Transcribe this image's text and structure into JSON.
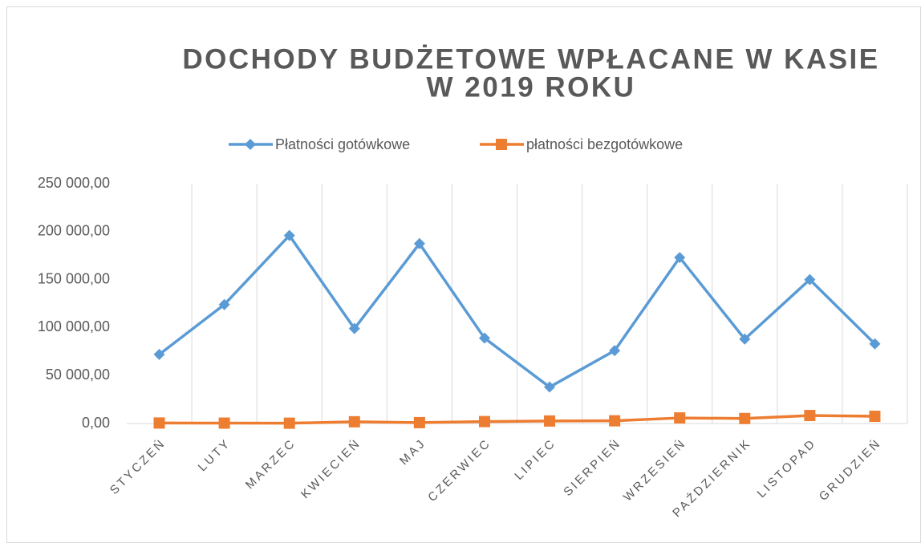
{
  "chart_data": {
    "type": "line",
    "title": [
      "DOCHODY BUDŻETOWE WPŁACANE W KASIE",
      "W 2019 ROKU"
    ],
    "categories": [
      "STYCZEŃ",
      "LUTY",
      "MARZEC",
      "KWIECIEŃ",
      "MAJ",
      "CZERWIEC",
      "LIPIEC",
      "SIERPIEŃ",
      "WRZESIEŃ",
      "PAŹDZIERNIK",
      "LISTOPAD",
      "GRUDZIEŃ"
    ],
    "series": [
      {
        "name": "Płatności gotówkowe",
        "color": "#5b9bd5",
        "marker": "diamond",
        "values": [
          72000,
          124000,
          196000,
          99000,
          187500,
          89000,
          38000,
          76000,
          173000,
          88000,
          150000,
          83000
        ]
      },
      {
        "name": "płatności bezgotówkowe",
        "color": "#ed7d31",
        "marker": "square",
        "values": [
          500,
          400,
          300,
          1800,
          900,
          2000,
          2600,
          2800,
          5800,
          5200,
          8300,
          7500
        ]
      }
    ],
    "ylim": [
      0,
      250000
    ],
    "yticks": [
      {
        "value": 0,
        "label": "0,00"
      },
      {
        "value": 50000,
        "label": "50 000,00"
      },
      {
        "value": 100000,
        "label": "100 000,00"
      },
      {
        "value": 150000,
        "label": "150 000,00"
      },
      {
        "value": 200000,
        "label": "200 000,00"
      },
      {
        "value": 250000,
        "label": "250 000,00"
      }
    ],
    "legend": "top"
  }
}
